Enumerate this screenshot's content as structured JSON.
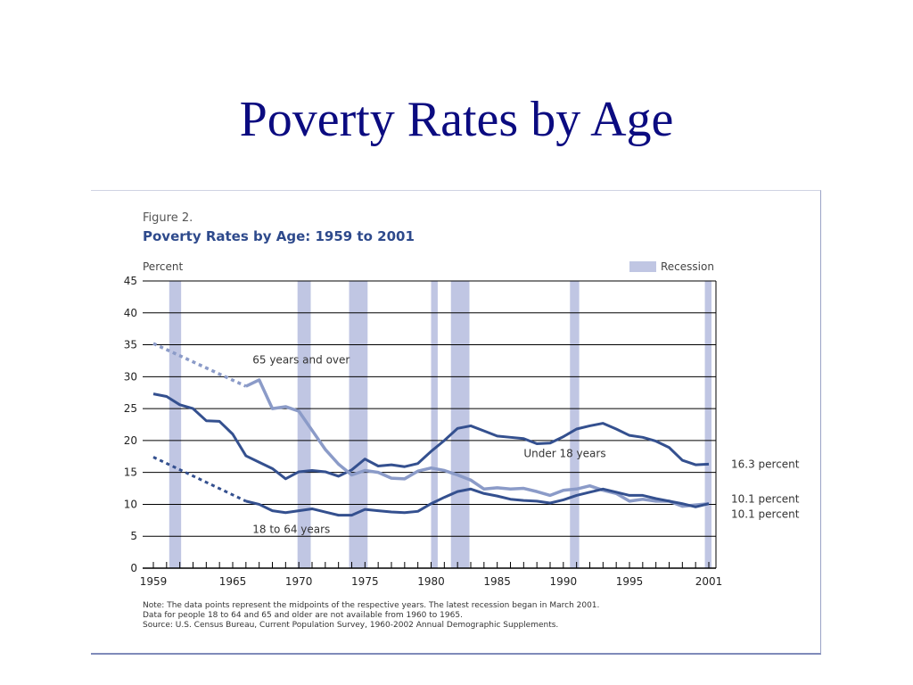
{
  "slide": {
    "title": "Poverty Rates by Age"
  },
  "figure": {
    "label": "Figure 2.",
    "title": "Poverty Rates by Age:  1959 to 2001",
    "unit": "Percent",
    "notes": [
      "Note:  The data points represent the midpoints of the respective years.  The latest recession began in March 2001.",
      "Data for people 18 to 64 and 65 and older are not available from 1960 to 1965.",
      "Source:  U.S. Census Bureau, Current Population Survey, 1960-2002 Annual Demographic Supplements."
    ]
  },
  "colors": {
    "title": "#0b0b80",
    "recession": "#c0c6e3",
    "under18": "#34508f",
    "age18to64": "#34508f",
    "over65": "#8b9bc8",
    "grid": "#000000"
  },
  "chart_data": {
    "type": "line",
    "ylim": [
      0,
      45
    ],
    "xlim": [
      1959,
      2001
    ],
    "yticks": [
      0,
      5,
      10,
      15,
      20,
      25,
      30,
      35,
      40,
      45
    ],
    "xtick_labels": [
      "1959",
      "1965",
      "1970",
      "1975",
      "1980",
      "1985",
      "1990",
      "1995",
      "2001"
    ],
    "legend": {
      "label": "Recession",
      "position": "top-right"
    },
    "recessions": [
      [
        1960.2,
        1961.1
      ],
      [
        1969.9,
        1970.9
      ],
      [
        1973.8,
        1975.2
      ],
      [
        1980.0,
        1980.5
      ],
      [
        1981.5,
        1982.9
      ],
      [
        1990.5,
        1991.2
      ],
      [
        2000.7,
        2001.2
      ]
    ],
    "series": [
      {
        "name": "Under 18 years",
        "end_label": "16.3 percent",
        "x": [
          1959,
          1960,
          1961,
          1962,
          1963,
          1964,
          1965,
          1966,
          1967,
          1968,
          1969,
          1970,
          1971,
          1972,
          1973,
          1974,
          1975,
          1976,
          1977,
          1978,
          1979,
          1980,
          1981,
          1982,
          1983,
          1984,
          1985,
          1986,
          1987,
          1988,
          1989,
          1990,
          1991,
          1992,
          1993,
          1994,
          1995,
          1996,
          1997,
          1998,
          1999,
          2000,
          2001
        ],
        "y": [
          27.3,
          26.9,
          25.6,
          25.0,
          23.1,
          23.0,
          21.0,
          17.6,
          16.6,
          15.6,
          14.0,
          15.1,
          15.3,
          15.1,
          14.4,
          15.4,
          17.1,
          16.0,
          16.2,
          15.9,
          16.4,
          18.3,
          20.0,
          21.9,
          22.3,
          21.5,
          20.7,
          20.5,
          20.3,
          19.5,
          19.6,
          20.6,
          21.8,
          22.3,
          22.7,
          21.8,
          20.8,
          20.5,
          19.9,
          18.9,
          16.9,
          16.2,
          16.3
        ]
      },
      {
        "name": "65 years and over",
        "end_label": "10.1 percent",
        "dashed_x": [
          1959,
          1966
        ],
        "dashed_y": [
          35.2,
          28.5
        ],
        "x": [
          1966,
          1967,
          1968,
          1969,
          1970,
          1971,
          1972,
          1973,
          1974,
          1975,
          1976,
          1977,
          1978,
          1979,
          1980,
          1981,
          1982,
          1983,
          1984,
          1985,
          1986,
          1987,
          1988,
          1989,
          1990,
          1991,
          1992,
          1993,
          1994,
          1995,
          1996,
          1997,
          1998,
          1999,
          2000,
          2001
        ],
        "y": [
          28.5,
          29.5,
          25.0,
          25.3,
          24.6,
          21.6,
          18.6,
          16.3,
          14.6,
          15.3,
          15.0,
          14.1,
          14.0,
          15.2,
          15.7,
          15.3,
          14.6,
          13.8,
          12.4,
          12.6,
          12.4,
          12.5,
          12.0,
          11.4,
          12.2,
          12.4,
          12.9,
          12.2,
          11.7,
          10.5,
          10.8,
          10.5,
          10.5,
          9.7,
          9.9,
          10.1
        ]
      },
      {
        "name": "18 to 64 years",
        "end_label": "10.1 percent",
        "dashed_x": [
          1959,
          1966
        ],
        "dashed_y": [
          17.4,
          10.5
        ],
        "x": [
          1966,
          1967,
          1968,
          1969,
          1970,
          1971,
          1972,
          1973,
          1974,
          1975,
          1976,
          1977,
          1978,
          1979,
          1980,
          1981,
          1982,
          1983,
          1984,
          1985,
          1986,
          1987,
          1988,
          1989,
          1990,
          1991,
          1992,
          1993,
          1994,
          1995,
          1996,
          1997,
          1998,
          1999,
          2000,
          2001
        ],
        "y": [
          10.5,
          10.0,
          9.0,
          8.7,
          9.0,
          9.3,
          8.8,
          8.3,
          8.3,
          9.2,
          9.0,
          8.8,
          8.7,
          8.9,
          10.1,
          11.1,
          12.0,
          12.4,
          11.7,
          11.3,
          10.8,
          10.6,
          10.5,
          10.2,
          10.7,
          11.4,
          11.9,
          12.4,
          11.9,
          11.4,
          11.4,
          10.9,
          10.5,
          10.1,
          9.6,
          10.1
        ]
      }
    ]
  }
}
